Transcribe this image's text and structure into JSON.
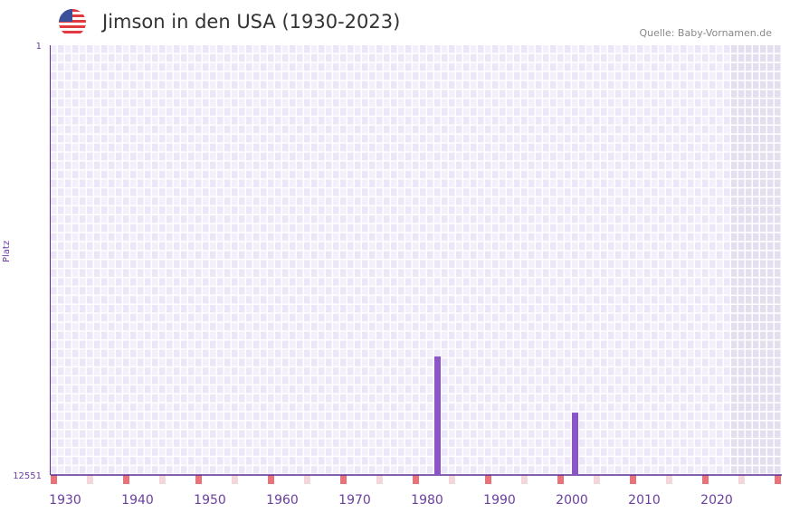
{
  "chart_data": {
    "type": "bar",
    "title": "Jimson in den USA (1930-2023)",
    "source": "Quelle: Baby-Vornamen.de",
    "ylabel": "Platz",
    "ylim": [
      1,
      12551
    ],
    "yticks": [
      "1",
      "12551"
    ],
    "xlim": [
      1928,
      2028
    ],
    "xticks": [
      "1930",
      "1940",
      "1950",
      "1960",
      "1970",
      "1980",
      "1990",
      "2000",
      "2010",
      "2020"
    ],
    "shaded_from_year": 2022,
    "points": [
      {
        "year": 1981,
        "rank": 9090
      },
      {
        "year": 2000,
        "rank": 10730
      }
    ],
    "colors": {
      "bar": "#8b55c8",
      "axis": "#5a2d91",
      "marker": "#e8737a",
      "marker_light": "#f4d6dd",
      "grid_a": "#f3effb",
      "grid_b": "#ece6f8",
      "shade": "#e4dfef"
    }
  }
}
